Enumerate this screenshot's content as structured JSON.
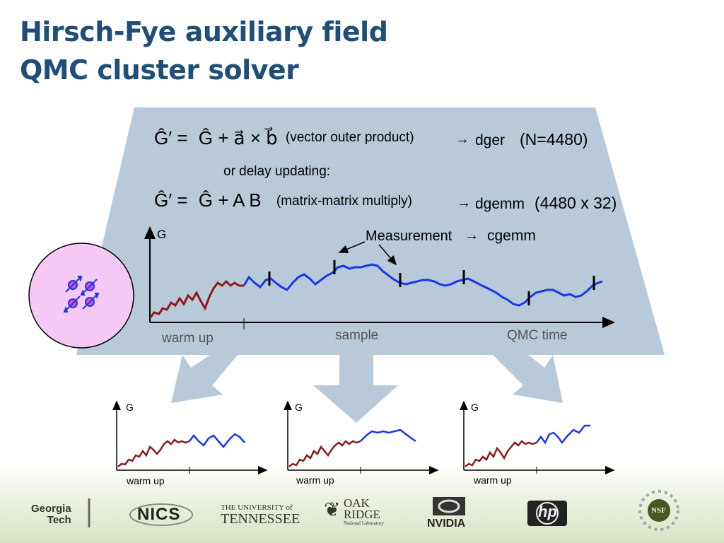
{
  "title": {
    "line1": "Hirsch-Fye auxiliary field",
    "line2": "QMC cluster solver"
  },
  "equations": {
    "eq1": {
      "lhs": "Ĝ′ =",
      "rhs": "Ĝ + a⃗ × b⃗",
      "note": "(vector outer product)",
      "arrow": "→",
      "routine": "dger",
      "size": "(N=4480)"
    },
    "delay": "or delay updating:",
    "eq2": {
      "lhs": "Ĝ′ =",
      "rhs": "Ĝ + A B",
      "note": "(matrix-matrix multiply)",
      "arrow": "→",
      "routine": "dgemm",
      "size": "(4480 x 32)"
    }
  },
  "main_plot": {
    "y_label": "G",
    "measurement_label": "Measurement",
    "measurement_arrow": "→",
    "measurement_routine": "cgemm",
    "x_labels": {
      "warmup": "warm up",
      "sample": "sample",
      "time": "QMC time"
    }
  },
  "small_plots": [
    {
      "y_label": "G",
      "x_label": "warm up"
    },
    {
      "y_label": "G",
      "x_label": "warm up"
    },
    {
      "y_label": "G",
      "x_label": "warm up"
    }
  ],
  "colors": {
    "warmup": "#8b1a1a",
    "sample": "#1a37e6",
    "panel": "#b8c9d9",
    "title": "#1f4e79",
    "cluster_fill": "#f5c8f5"
  },
  "logos": {
    "georgia_tech": {
      "line1": "Georgia",
      "line2": "Tech"
    },
    "nics": "NICS",
    "tennessee": {
      "line1": "THE UNIVERSITY of",
      "line2": "TENNESSEE"
    },
    "oak_ridge": {
      "line1": "OAK",
      "line2": "RIDGE",
      "line3": "National Laboratory"
    },
    "nvidia": "NVIDIA",
    "hp": "hp",
    "nsf": "NSF"
  }
}
